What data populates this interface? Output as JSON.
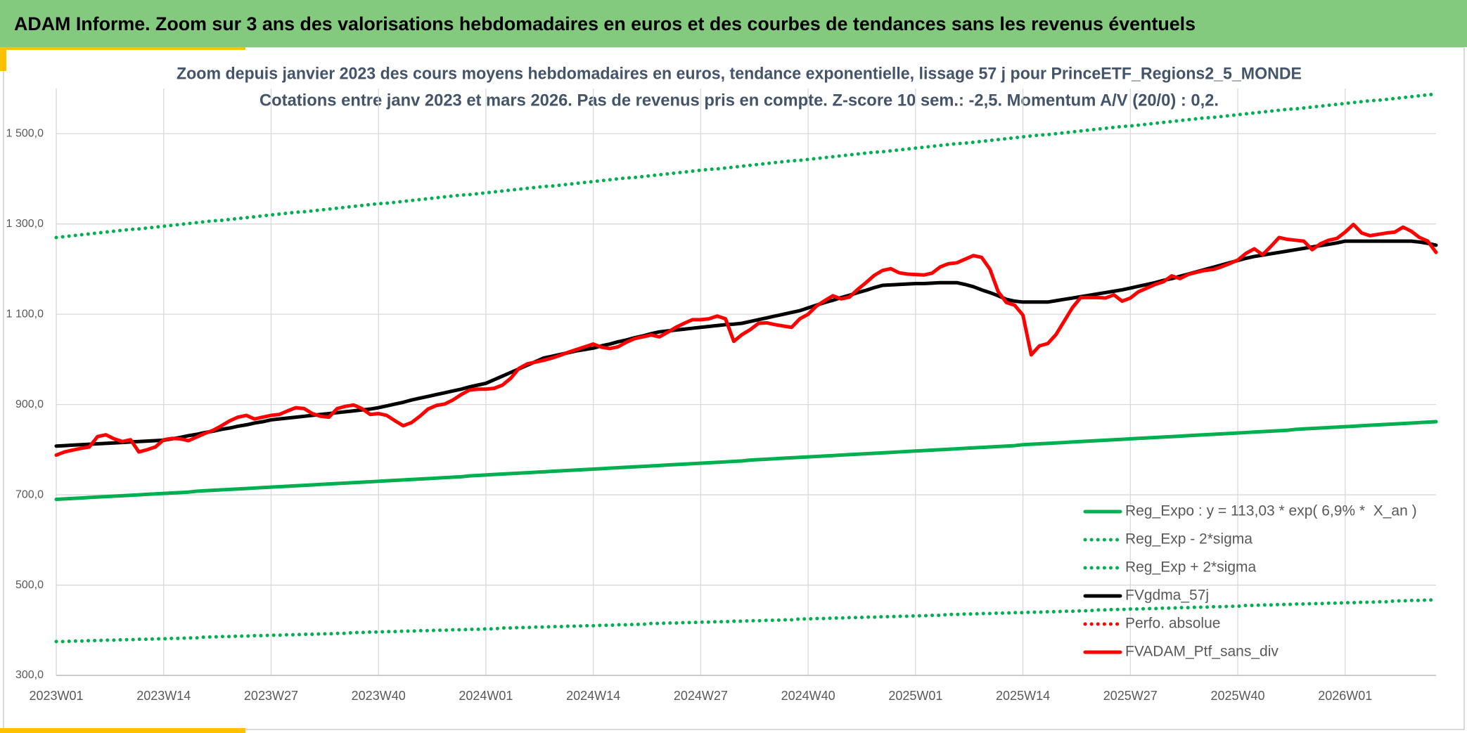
{
  "header": {
    "title": "ADAM Informe. Zoom sur 3 ans des valorisations hebdomadaires en euros et des courbes de tendances sans les revenus éventuels"
  },
  "chart_data": {
    "type": "line",
    "title": "Zoom depuis janvier 2023 des cours moyens hebdomadaires en euros, tendance exponentielle, lissage 57 j pour PrinceETF_Regions2_5_MONDE",
    "subtitle": "Cotations entre janv 2023 et mars 2026. Pas de revenus pris en compte. Z-score 10 sem.: -2,5. Momentum A/V (20/0) : 0,2.",
    "categories": [
      "2023W01",
      null,
      null,
      null,
      null,
      null,
      null,
      null,
      null,
      null,
      null,
      null,
      null,
      "2023W14",
      null,
      null,
      null,
      null,
      null,
      null,
      null,
      null,
      null,
      null,
      null,
      null,
      "2023W27",
      null,
      null,
      null,
      null,
      null,
      null,
      null,
      null,
      null,
      null,
      null,
      null,
      "2023W40",
      null,
      null,
      null,
      null,
      null,
      null,
      null,
      null,
      null,
      null,
      null,
      null,
      "2024W01",
      null,
      null,
      null,
      null,
      null,
      null,
      null,
      null,
      null,
      null,
      null,
      null,
      "2024W14",
      null,
      null,
      null,
      null,
      null,
      null,
      null,
      null,
      null,
      null,
      null,
      null,
      "2024W27",
      null,
      null,
      null,
      null,
      null,
      null,
      null,
      null,
      null,
      null,
      null,
      null,
      "2024W40",
      null,
      null,
      null,
      null,
      null,
      null,
      null,
      null,
      null,
      null,
      null,
      null,
      "2025W01",
      null,
      null,
      null,
      null,
      null,
      null,
      null,
      null,
      null,
      null,
      null,
      null,
      "2025W14",
      null,
      null,
      null,
      null,
      null,
      null,
      null,
      null,
      null,
      null,
      null,
      null,
      "2025W27",
      null,
      null,
      null,
      null,
      null,
      null,
      null,
      null,
      null,
      null,
      null,
      null,
      "2025W40",
      null,
      null,
      null,
      null,
      null,
      null,
      null,
      null,
      null,
      null,
      null,
      null,
      "2026W01",
      null,
      null,
      null,
      null,
      null,
      null,
      null,
      null,
      null,
      null,
      null
    ],
    "ylim": [
      300,
      1600
    ],
    "yticks": [
      {
        "value": 300,
        "label": "300,0"
      },
      {
        "value": 500,
        "label": "500,0"
      },
      {
        "value": 700,
        "label": "700,0"
      },
      {
        "value": 900,
        "label": "900,0"
      },
      {
        "value": 1100,
        "label": "1 100,0"
      },
      {
        "value": 1300,
        "label": "1 300,0"
      },
      {
        "value": 1500,
        "label": "1 500,0"
      }
    ],
    "grid": true,
    "legend": "lower right",
    "series": [
      {
        "name": "Reg_Expo : y = 113,03 * exp( 6,9% *  X_an )",
        "color": "#00b050",
        "dash": "solid",
        "values": [
          690,
          691,
          692,
          693,
          694,
          695,
          696,
          697,
          698,
          699,
          700,
          701,
          702,
          703,
          704,
          705,
          706,
          708,
          709,
          710,
          711,
          712,
          713,
          714,
          715,
          716,
          717,
          718,
          719,
          720,
          721,
          722,
          723,
          724,
          725,
          726,
          727,
          728,
          729,
          730,
          731,
          732,
          733,
          734,
          735,
          736,
          737,
          738,
          739,
          740,
          742,
          743,
          744,
          745,
          746,
          747,
          748,
          749,
          750,
          751,
          752,
          753,
          754,
          755,
          756,
          757,
          758,
          759,
          760,
          761,
          762,
          763,
          764,
          765,
          766,
          767,
          768,
          769,
          770,
          771,
          772,
          773,
          774,
          775,
          777,
          778,
          779,
          780,
          781,
          782,
          783,
          784,
          785,
          786,
          787,
          788,
          789,
          790,
          791,
          792,
          793,
          794,
          795,
          796,
          797,
          798,
          799,
          800,
          801,
          802,
          803,
          804,
          805,
          806,
          807,
          808,
          809,
          811,
          812,
          813,
          814,
          815,
          816,
          817,
          818,
          819,
          820,
          821,
          822,
          823,
          824,
          825,
          826,
          827,
          828,
          829,
          830,
          831,
          832,
          833,
          834,
          835,
          836,
          837,
          838,
          839,
          840,
          841,
          842,
          843,
          845,
          846,
          847,
          848,
          849,
          850,
          851,
          852,
          853,
          854,
          855,
          856,
          857,
          858,
          859,
          860,
          861,
          862
        ]
      },
      {
        "name": "Reg_Exp - 2*sigma",
        "color": "#00b050",
        "dash": "dotted",
        "values": [
          375,
          375,
          376,
          376,
          377,
          377,
          378,
          378,
          379,
          379,
          380,
          380,
          381,
          381,
          382,
          382,
          383,
          383,
          385,
          385,
          386,
          386,
          387,
          387,
          388,
          388,
          389,
          389,
          390,
          390,
          391,
          391,
          392,
          392,
          393,
          393,
          395,
          395,
          396,
          396,
          397,
          397,
          398,
          398,
          399,
          399,
          400,
          400,
          401,
          401,
          402,
          402,
          403,
          403,
          405,
          405,
          406,
          406,
          407,
          407,
          408,
          408,
          409,
          409,
          410,
          410,
          411,
          411,
          412,
          412,
          413,
          413,
          415,
          415,
          416,
          416,
          417,
          417,
          418,
          418,
          419,
          419,
          420,
          420,
          421,
          421,
          422,
          422,
          423,
          423,
          425,
          425,
          426,
          426,
          427,
          427,
          428,
          428,
          429,
          429,
          430,
          430,
          431,
          431,
          432,
          432,
          433,
          433,
          435,
          435,
          436,
          436,
          437,
          437,
          438,
          438,
          439,
          439,
          440,
          440,
          441,
          441,
          442,
          442,
          443,
          443,
          445,
          445,
          446,
          446,
          447,
          447,
          448,
          448,
          449,
          449,
          450,
          450,
          451,
          451,
          452,
          452,
          453,
          453,
          455,
          455,
          456,
          456,
          457,
          457,
          458,
          458,
          459,
          459,
          460,
          460,
          461,
          461,
          462,
          462,
          463,
          463,
          465,
          465,
          466,
          466,
          467,
          467
        ]
      },
      {
        "name": "Reg_Exp + 2*sigma",
        "color": "#00b050",
        "dash": "dotted",
        "values": [
          1270,
          1272,
          1274,
          1276,
          1278,
          1280,
          1282,
          1284,
          1286,
          1288,
          1289,
          1291,
          1293,
          1295,
          1297,
          1299,
          1301,
          1303,
          1305,
          1307,
          1308,
          1310,
          1312,
          1314,
          1316,
          1318,
          1320,
          1322,
          1324,
          1326,
          1327,
          1329,
          1331,
          1333,
          1335,
          1337,
          1339,
          1341,
          1343,
          1345,
          1346,
          1348,
          1350,
          1352,
          1354,
          1356,
          1358,
          1360,
          1362,
          1364,
          1365,
          1367,
          1369,
          1371,
          1373,
          1375,
          1377,
          1379,
          1381,
          1383,
          1384,
          1386,
          1388,
          1390,
          1392,
          1394,
          1396,
          1398,
          1400,
          1402,
          1403,
          1405,
          1407,
          1409,
          1411,
          1413,
          1415,
          1417,
          1419,
          1421,
          1422,
          1424,
          1426,
          1428,
          1430,
          1432,
          1434,
          1436,
          1438,
          1440,
          1441,
          1443,
          1445,
          1447,
          1449,
          1451,
          1453,
          1455,
          1457,
          1459,
          1460,
          1462,
          1464,
          1466,
          1468,
          1470,
          1472,
          1474,
          1476,
          1478,
          1479,
          1481,
          1483,
          1485,
          1487,
          1489,
          1491,
          1493,
          1495,
          1497,
          1498,
          1500,
          1502,
          1504,
          1506,
          1508,
          1510,
          1512,
          1514,
          1516,
          1517,
          1519,
          1521,
          1523,
          1525,
          1527,
          1529,
          1531,
          1533,
          1535,
          1536,
          1538,
          1540,
          1542,
          1544,
          1546,
          1548,
          1550,
          1552,
          1554,
          1555,
          1557,
          1559,
          1561,
          1563,
          1565,
          1567,
          1569,
          1571,
          1573,
          1574,
          1576,
          1578,
          1580,
          1582,
          1584,
          1586,
          1588
        ]
      },
      {
        "name": "FVgdma_57j",
        "color": "#000000",
        "dash": "solid",
        "values": [
          808,
          809,
          810,
          811,
          812,
          813,
          814,
          815,
          816,
          817,
          818,
          819,
          820,
          821,
          824,
          827,
          831,
          834,
          838,
          841,
          845,
          848,
          852,
          855,
          859,
          862,
          866,
          868,
          870,
          872,
          874,
          876,
          878,
          880,
          882,
          884,
          886,
          888,
          890,
          893,
          897,
          901,
          905,
          910,
          914,
          918,
          922,
          926,
          930,
          934,
          939,
          943,
          947,
          955,
          963,
          971,
          979,
          987,
          995,
          1003,
          1007,
          1011,
          1015,
          1019,
          1022,
          1025,
          1030,
          1034,
          1039,
          1043,
          1048,
          1052,
          1057,
          1061,
          1063,
          1065,
          1067,
          1069,
          1071,
          1073,
          1075,
          1077,
          1078,
          1080,
          1084,
          1088,
          1092,
          1096,
          1100,
          1104,
          1108,
          1114,
          1120,
          1126,
          1131,
          1137,
          1142,
          1148,
          1153,
          1159,
          1164,
          1165,
          1166,
          1167,
          1168,
          1168,
          1169,
          1170,
          1170,
          1170,
          1166,
          1161,
          1154,
          1148,
          1141,
          1133,
          1129,
          1127,
          1127,
          1127,
          1127,
          1130,
          1133,
          1136,
          1139,
          1142,
          1145,
          1148,
          1151,
          1154,
          1158,
          1162,
          1166,
          1170,
          1175,
          1179,
          1184,
          1189,
          1194,
          1199,
          1204,
          1209,
          1214,
          1219,
          1224,
          1228,
          1231,
          1234,
          1237,
          1240,
          1243,
          1246,
          1249,
          1252,
          1255,
          1258,
          1262,
          1262,
          1262,
          1262,
          1262,
          1262,
          1262,
          1262,
          1262,
          1260,
          1257,
          1253
        ]
      },
      {
        "name": "Perfo. absolue",
        "color": "#ff0000",
        "dash": "dotted",
        "values": [
          null,
          null,
          null,
          null,
          null,
          null,
          null,
          null,
          null,
          null,
          null,
          null,
          null,
          null,
          null,
          null,
          null,
          null,
          null,
          null,
          null,
          null,
          null,
          null,
          null,
          null,
          null,
          null,
          null,
          null,
          null,
          null,
          null,
          null,
          null,
          null,
          null,
          null,
          null,
          null,
          null,
          null,
          null,
          null,
          null,
          null,
          null,
          null,
          null,
          null,
          null,
          null,
          null,
          null,
          null,
          null,
          null,
          null,
          null,
          null,
          null,
          null,
          null,
          null,
          null,
          null,
          null,
          null,
          null,
          null,
          null,
          null,
          null,
          null,
          null,
          null,
          null,
          null,
          null,
          null,
          null,
          null,
          null,
          null,
          null,
          null,
          null,
          null,
          null,
          null,
          null,
          null,
          null,
          null,
          null,
          null,
          null,
          null,
          null,
          null,
          null,
          null,
          null,
          null,
          null,
          null,
          null,
          null,
          null,
          null,
          null,
          null,
          null,
          null,
          null,
          null,
          null,
          null,
          null,
          null,
          null,
          null,
          null,
          null,
          null,
          null,
          null,
          null,
          null,
          null,
          null,
          null,
          null,
          null,
          null,
          null,
          null,
          null,
          null,
          null,
          null,
          null,
          null,
          null,
          null,
          null,
          null,
          null,
          null,
          null,
          null,
          null,
          null,
          null,
          null,
          null,
          null,
          null,
          null,
          null,
          null,
          null,
          null,
          null,
          null,
          null,
          null,
          null
        ]
      },
      {
        "name": "FVADAM_Ptf_sans_div",
        "color": "#ff0000",
        "dash": "solid",
        "values": [
          788,
          795,
          799,
          803,
          806,
          829,
          833,
          824,
          818,
          822,
          795,
          800,
          806,
          822,
          825,
          824,
          820,
          828,
          836,
          843,
          853,
          864,
          872,
          876,
          868,
          872,
          876,
          878,
          886,
          893,
          891,
          880,
          874,
          872,
          891,
          896,
          899,
          891,
          878,
          880,
          876,
          864,
          853,
          860,
          874,
          890,
          898,
          901,
          910,
          922,
          932,
          934,
          934,
          936,
          943,
          958,
          980,
          990,
          994,
          998,
          1003,
          1009,
          1016,
          1022,
          1028,
          1034,
          1027,
          1024,
          1028,
          1038,
          1046,
          1050,
          1054,
          1050,
          1060,
          1071,
          1080,
          1088,
          1088,
          1090,
          1096,
          1090,
          1040,
          1055,
          1066,
          1080,
          1081,
          1077,
          1074,
          1071,
          1090,
          1100,
          1118,
          1130,
          1141,
          1134,
          1138,
          1155,
          1170,
          1186,
          1197,
          1201,
          1192,
          1189,
          1188,
          1187,
          1191,
          1205,
          1212,
          1214,
          1222,
          1230,
          1226,
          1200,
          1150,
          1126,
          1120,
          1098,
          1010,
          1030,
          1035,
          1055,
          1085,
          1115,
          1137,
          1137,
          1137,
          1136,
          1143,
          1129,
          1136,
          1150,
          1158,
          1166,
          1172,
          1185,
          1179,
          1188,
          1193,
          1197,
          1199,
          1205,
          1212,
          1220,
          1235,
          1245,
          1232,
          1250,
          1270,
          1266,
          1264,
          1262,
          1243,
          1256,
          1264,
          1268,
          1282,
          1299,
          1280,
          1274,
          1277,
          1280,
          1282,
          1293,
          1284,
          1270,
          1262,
          1237
        ]
      }
    ]
  }
}
